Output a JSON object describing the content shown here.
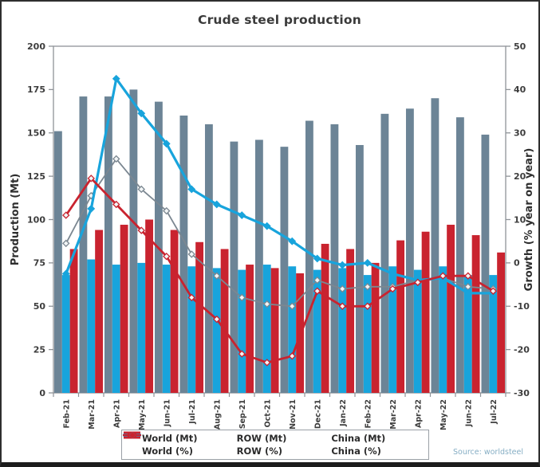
{
  "figure": {
    "source": "Source: worldsteel"
  },
  "chart_data": {
    "type": "combo-bar-line",
    "title": "Crude steel production",
    "categories": [
      "Feb-21",
      "Mar-21",
      "Apr-21",
      "May-21",
      "Jun-21",
      "Jul-21",
      "Aug-21",
      "Sep-21",
      "Oct-21",
      "Nov-21",
      "Dec-21",
      "Jan-22",
      "Feb-22",
      "Mar-22",
      "Apr-22",
      "May-22",
      "Jun-22",
      "Jul-22"
    ],
    "left_axis": {
      "label": "Production (Mt)",
      "min": 0,
      "max": 200,
      "ticks": [
        0,
        25,
        50,
        75,
        100,
        125,
        150,
        175,
        200
      ]
    },
    "right_axis": {
      "label": "Growth (% year on year)",
      "min": -30,
      "max": 50,
      "ticks": [
        -30,
        -20,
        -10,
        0,
        10,
        20,
        30,
        40,
        50
      ]
    },
    "grid": false,
    "legend_position": "bottom",
    "series": [
      {
        "name": "World (Mt)",
        "type": "bar",
        "axis": "left",
        "color": "#6c8496",
        "values": [
          151,
          171,
          171,
          175,
          168,
          160,
          155,
          145,
          146,
          142,
          157,
          155,
          143,
          161,
          164,
          170,
          159,
          149
        ]
      },
      {
        "name": "ROW (Mt)",
        "type": "bar",
        "axis": "left",
        "color": "#18a4dc",
        "values": [
          68,
          77,
          74,
          75,
          74,
          73,
          72,
          71,
          74,
          73,
          71,
          72,
          68,
          73,
          71,
          73,
          68,
          68
        ]
      },
      {
        "name": "China (Mt)",
        "type": "bar",
        "axis": "left",
        "color": "#c9232f",
        "values": [
          83,
          94,
          97,
          100,
          94,
          87,
          83,
          74,
          72,
          69,
          86,
          83,
          75,
          88,
          93,
          97,
          91,
          81
        ]
      },
      {
        "name": "World (%)",
        "type": "line",
        "axis": "right",
        "color": "#7b8791",
        "marker": "open-diamond",
        "values": [
          4.5,
          15.5,
          24,
          17,
          12,
          2,
          -3,
          -8,
          -9.5,
          -10,
          -4,
          -6,
          -5.5,
          -5.5,
          -4,
          -3.5,
          -5.5,
          -6
        ]
      },
      {
        "name": "ROW (%)",
        "type": "line",
        "axis": "right",
        "color": "#18a4dc",
        "marker": "filled-diamond",
        "values": [
          -2.5,
          12.5,
          42.5,
          34.5,
          27.5,
          17,
          13.5,
          11,
          8.5,
          5,
          1,
          -0.5,
          0,
          -2.5,
          -4,
          -3.5,
          -7,
          -7
        ]
      },
      {
        "name": "China (%)",
        "type": "line",
        "axis": "right",
        "color": "#c9232f",
        "marker": "open-diamond",
        "values": [
          11,
          19.5,
          13.5,
          7.5,
          1.5,
          -8,
          -13,
          -21,
          -23,
          -21.5,
          -6.5,
          -10,
          -10,
          -6,
          -4.5,
          -3,
          -3,
          -6.5
        ]
      }
    ]
  }
}
